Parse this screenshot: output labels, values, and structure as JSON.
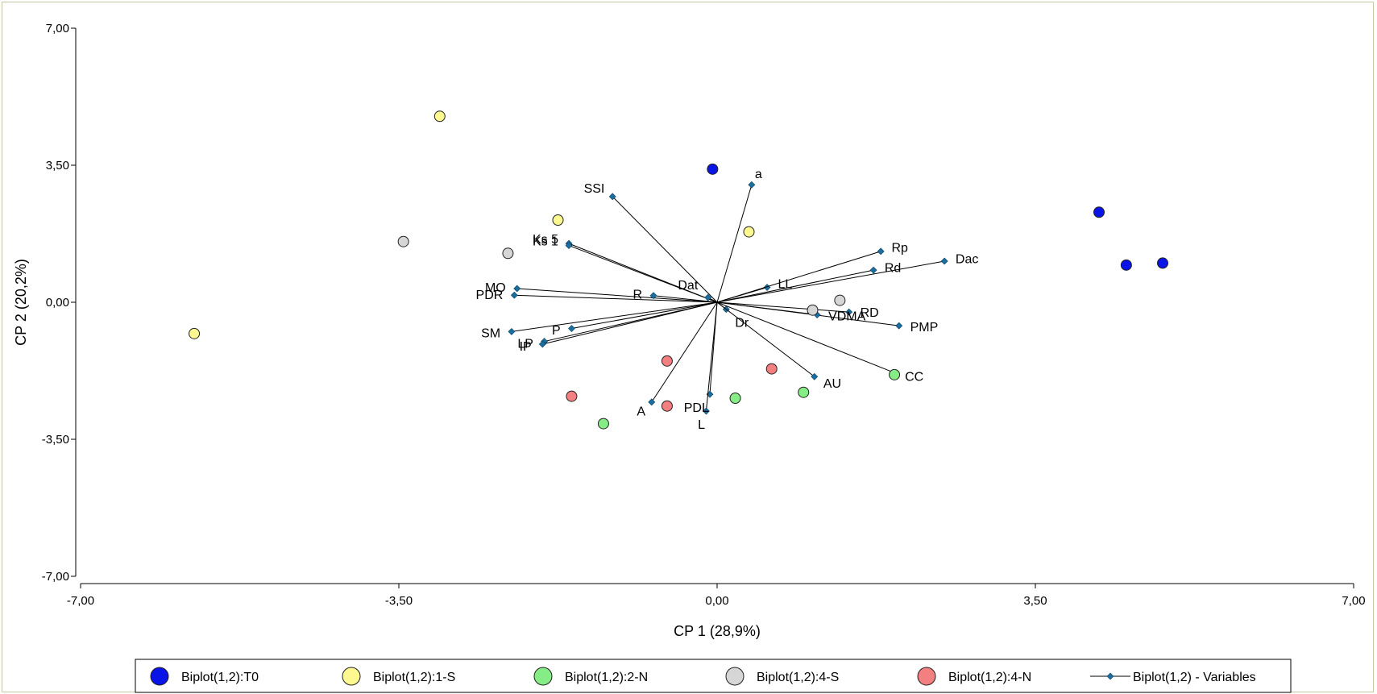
{
  "chart_data": {
    "type": "scatter",
    "subtype": "biplot",
    "title": "",
    "xlabel": "CP 1 (28,9%)",
    "ylabel": "CP 2 (20,2%)",
    "xlim": [
      -7,
      7
    ],
    "ylim": [
      -7,
      7
    ],
    "x_ticks": [
      "-7,00",
      "-3,50",
      "0,00",
      "3,50",
      "7,00"
    ],
    "y_ticks": [
      "7,00",
      "3,50",
      "0,00",
      "-3,50",
      "-7,00"
    ],
    "x_tick_values": [
      -7,
      -3.5,
      0,
      3.5,
      7
    ],
    "y_tick_values": [
      7,
      3.5,
      0,
      -3.5,
      -7
    ],
    "grid": false,
    "legend_position": "bottom",
    "series": [
      {
        "name": "Biplot(1,2):T0",
        "color": "#0a14e6",
        "points": [
          [
            -0.05,
            3.4
          ],
          [
            4.2,
            2.3
          ],
          [
            4.5,
            0.95
          ],
          [
            4.9,
            1.0
          ]
        ]
      },
      {
        "name": "Biplot(1,2):1-S",
        "color": "#fdf890",
        "points": [
          [
            -3.05,
            4.75
          ],
          [
            -5.75,
            -0.8
          ],
          [
            -1.75,
            2.1
          ],
          [
            0.35,
            1.8
          ]
        ]
      },
      {
        "name": "Biplot(1,2):2-N",
        "color": "#86ec86",
        "points": [
          [
            -1.25,
            -3.1
          ],
          [
            0.2,
            -2.45
          ],
          [
            0.95,
            -2.3
          ],
          [
            1.95,
            -1.85
          ]
        ]
      },
      {
        "name": "Biplot(1,2):4-S",
        "color": "#d6d6d6",
        "points": [
          [
            -3.45,
            1.55
          ],
          [
            -2.3,
            1.25
          ],
          [
            1.05,
            -0.2
          ],
          [
            1.35,
            0.05
          ]
        ]
      },
      {
        "name": "Biplot(1,2):4-N",
        "color": "#f28080",
        "points": [
          [
            -0.55,
            -1.5
          ],
          [
            -1.6,
            -2.4
          ],
          [
            -0.55,
            -2.65
          ],
          [
            0.6,
            -1.7
          ]
        ]
      }
    ],
    "variables_series": {
      "name": "Biplot(1,2) - Variables",
      "color": "#1a6fa0",
      "vectors": [
        {
          "label": "a",
          "x": 0.38,
          "y": 3.0
        },
        {
          "label": "SSI",
          "x": -1.15,
          "y": 2.7
        },
        {
          "label": "Ks 5",
          "x": -1.63,
          "y": 1.5
        },
        {
          "label": "Ks 1",
          "x": -1.63,
          "y": 1.45
        },
        {
          "label": "MO",
          "x": -2.2,
          "y": 0.35
        },
        {
          "label": "PDR",
          "x": -2.23,
          "y": 0.18
        },
        {
          "label": "R",
          "x": -0.7,
          "y": 0.17
        },
        {
          "label": "Dat",
          "x": -0.1,
          "y": 0.12
        },
        {
          "label": "LL",
          "x": 0.55,
          "y": 0.38
        },
        {
          "label": "Rp",
          "x": 1.8,
          "y": 1.3
        },
        {
          "label": "Rd",
          "x": 1.72,
          "y": 0.82
        },
        {
          "label": "Dac",
          "x": 2.5,
          "y": 1.05
        },
        {
          "label": "RD",
          "x": 1.45,
          "y": -0.25
        },
        {
          "label": "PMP",
          "x": 2.0,
          "y": -0.6
        },
        {
          "label": "VDMA",
          "x": 1.1,
          "y": -0.32
        },
        {
          "label": "Dr",
          "x": 0.1,
          "y": -0.18
        },
        {
          "label": "AU",
          "x": 1.07,
          "y": -1.9
        },
        {
          "label": "CC",
          "x": 1.95,
          "y": -1.8
        },
        {
          "label": "PDL",
          "x": -0.08,
          "y": -2.35
        },
        {
          "label": "L",
          "x": -0.12,
          "y": -2.78
        },
        {
          "label": "A",
          "x": -0.72,
          "y": -2.55
        },
        {
          "label": "P",
          "x": -1.6,
          "y": -0.67
        },
        {
          "label": "SM",
          "x": -2.26,
          "y": -0.75
        },
        {
          "label": "LP",
          "x": -1.9,
          "y": -1.0
        },
        {
          "label": "IP",
          "x": -1.92,
          "y": -1.07
        }
      ]
    }
  }
}
